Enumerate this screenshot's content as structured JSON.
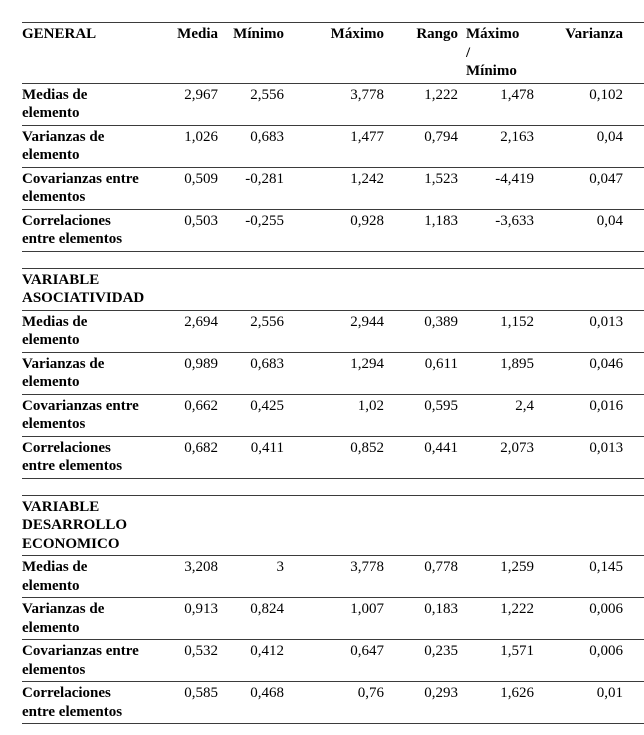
{
  "table": {
    "columns": {
      "media": "Media",
      "minimo": "Mínimo",
      "maximo": "Máximo",
      "rango": "Rango",
      "maximo_minimo": "Máximo\n/\nMínimo",
      "varianza": "Varianza"
    },
    "sections": [
      {
        "title": "GENERAL",
        "rows": [
          {
            "label": "Medias de\nelemento",
            "values": [
              "2,967",
              "2,556",
              "3,778",
              "1,222",
              "1,478",
              "0,102"
            ]
          },
          {
            "label": "Varianzas de\nelemento",
            "values": [
              "1,026",
              "0,683",
              "1,477",
              "0,794",
              "2,163",
              "0,04"
            ]
          },
          {
            "label": "Covarianzas entre\nelementos",
            "values": [
              "0,509",
              "-0,281",
              "1,242",
              "1,523",
              "-4,419",
              "0,047"
            ]
          },
          {
            "label": "Correlaciones\nentre elementos",
            "values": [
              "0,503",
              "-0,255",
              "0,928",
              "1,183",
              "-3,633",
              "0,04"
            ]
          }
        ]
      },
      {
        "title": "VARIABLE\nASOCIATIVIDAD",
        "rows": [
          {
            "label": "Medias de\nelemento",
            "values": [
              "2,694",
              "2,556",
              "2,944",
              "0,389",
              "1,152",
              "0,013"
            ]
          },
          {
            "label": "Varianzas de\nelemento",
            "values": [
              "0,989",
              "0,683",
              "1,294",
              "0,611",
              "1,895",
              "0,046"
            ]
          },
          {
            "label": "Covarianzas entre\nelementos",
            "values": [
              "0,662",
              "0,425",
              "1,02",
              "0,595",
              "2,4",
              "0,016"
            ]
          },
          {
            "label": "Correlaciones\nentre elementos",
            "values": [
              "0,682",
              "0,411",
              "0,852",
              "0,441",
              "2,073",
              "0,013"
            ]
          }
        ]
      },
      {
        "title": "VARIABLE\nDESARROLLO\nECONOMICO",
        "rows": [
          {
            "label": "Medias de\nelemento",
            "values": [
              "3,208",
              "3",
              "3,778",
              "0,778",
              "1,259",
              "0,145"
            ]
          },
          {
            "label": "Varianzas de\nelemento",
            "values": [
              "0,913",
              "0,824",
              "1,007",
              "0,183",
              "1,222",
              "0,006"
            ]
          },
          {
            "label": "Covarianzas entre\nelementos",
            "values": [
              "0,532",
              "0,412",
              "0,647",
              "0,235",
              "1,571",
              "0,006"
            ]
          },
          {
            "label": "Correlaciones\nentre elementos",
            "values": [
              "0,585",
              "0,468",
              "0,76",
              "0,293",
              "1,626",
              "0,01"
            ]
          }
        ]
      }
    ]
  }
}
